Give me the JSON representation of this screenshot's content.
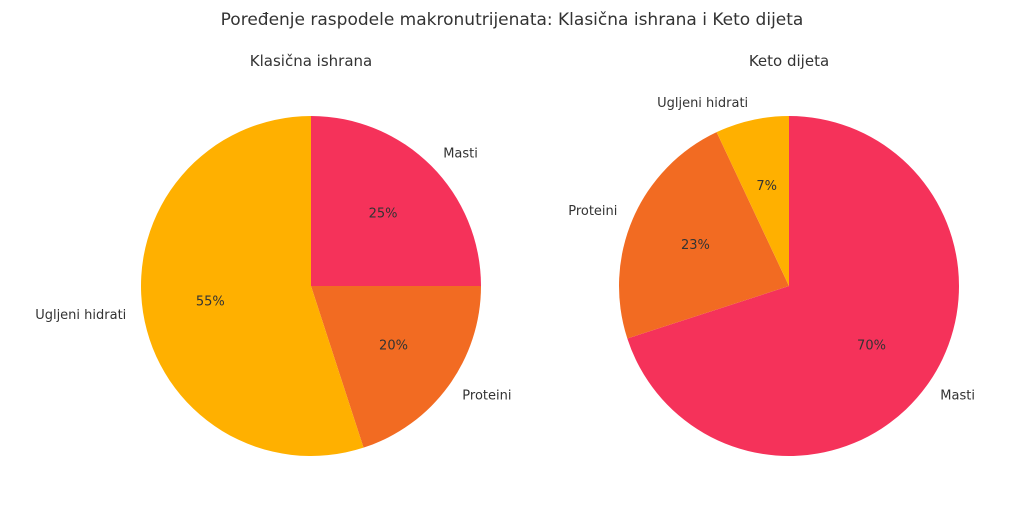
{
  "title": "Poređenje raspodele makronutrijenata: Klasična ishrana i Keto dijeta",
  "chart_data": [
    {
      "type": "pie",
      "title": "Klasična ishrana",
      "labels": [
        "Masti",
        "Proteini",
        "Ugljeni hidrati"
      ],
      "values": [
        25,
        20,
        55
      ],
      "value_labels": [
        "25%",
        "20%",
        "55%"
      ],
      "colors": [
        "#F5325A",
        "#F26B22",
        "#FFB000"
      ],
      "start_angle": "top, clockwise"
    },
    {
      "type": "pie",
      "title": "Keto dijeta",
      "labels": [
        "Masti",
        "Proteini",
        "Ugljeni hidrati"
      ],
      "values": [
        70,
        23,
        7
      ],
      "value_labels": [
        "70%",
        "23%",
        "7%"
      ],
      "colors": [
        "#F5325A",
        "#F26B22",
        "#FFB000"
      ],
      "start_angle": "top, clockwise"
    }
  ]
}
